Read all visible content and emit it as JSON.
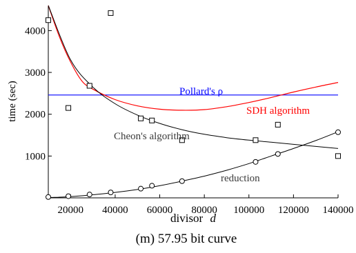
{
  "caption": "(m) 57.95 bit curve",
  "chart_data": {
    "type": "scatter",
    "xlabel": "divisor",
    "xlabel_var": "d",
    "ylabel": "time (sec)",
    "xlim": [
      10000,
      140000
    ],
    "ylim": [
      0,
      4600
    ],
    "x_ticks": [
      20000,
      40000,
      60000,
      80000,
      100000,
      120000,
      140000
    ],
    "y_ticks": [
      1000,
      2000,
      3000,
      4000
    ],
    "grid": false,
    "colors": {
      "axis": "#000000",
      "pollard": "#0000ff",
      "sdh": "#ff0000",
      "cheon": "#000000",
      "reduction": "#000000"
    },
    "labels": {
      "pollard": "Pollard's ρ",
      "sdh": "SDH algorithm",
      "cheon": "Cheon's algorithm",
      "reduction": "reduction"
    },
    "cheon_points": {
      "marker": "square",
      "x": [
        10000,
        19000,
        28500,
        38000,
        51500,
        56500,
        70000,
        103000,
        113000,
        140000
      ],
      "y": [
        4250,
        2150,
        2680,
        4420,
        1900,
        1850,
        1380,
        1380,
        1750,
        1000
      ]
    },
    "reduction_points": {
      "marker": "circle",
      "x": [
        10000,
        19000,
        28500,
        38000,
        51500,
        56500,
        70000,
        103000,
        113000,
        140000
      ],
      "y": [
        20,
        40,
        80,
        130,
        220,
        290,
        400,
        860,
        1050,
        1570
      ]
    },
    "pollard_line": {
      "y": 2460
    },
    "cheon_fit": {
      "x": [
        10000,
        20000,
        30000,
        40000,
        50000,
        60000,
        70000,
        80000,
        90000,
        100000,
        110000,
        120000,
        130000,
        140000
      ],
      "y": [
        4600,
        3300,
        2650,
        2250,
        1980,
        1780,
        1630,
        1520,
        1440,
        1380,
        1330,
        1280,
        1230,
        1180
      ]
    },
    "reduction_fit": {
      "x": [
        10000,
        20000,
        30000,
        40000,
        50000,
        60000,
        70000,
        80000,
        90000,
        100000,
        110000,
        120000,
        130000,
        140000
      ],
      "y": [
        5,
        30,
        75,
        130,
        200,
        290,
        400,
        520,
        660,
        820,
        1000,
        1180,
        1370,
        1580
      ]
    },
    "sdh_fit": {
      "x": [
        10000,
        15000,
        20000,
        25000,
        30000,
        40000,
        50000,
        60000,
        70000,
        80000,
        90000,
        100000,
        110000,
        120000,
        130000,
        140000
      ],
      "y": [
        4600,
        3850,
        3250,
        2800,
        2600,
        2350,
        2200,
        2120,
        2095,
        2110,
        2180,
        2280,
        2400,
        2530,
        2650,
        2760
      ]
    }
  }
}
